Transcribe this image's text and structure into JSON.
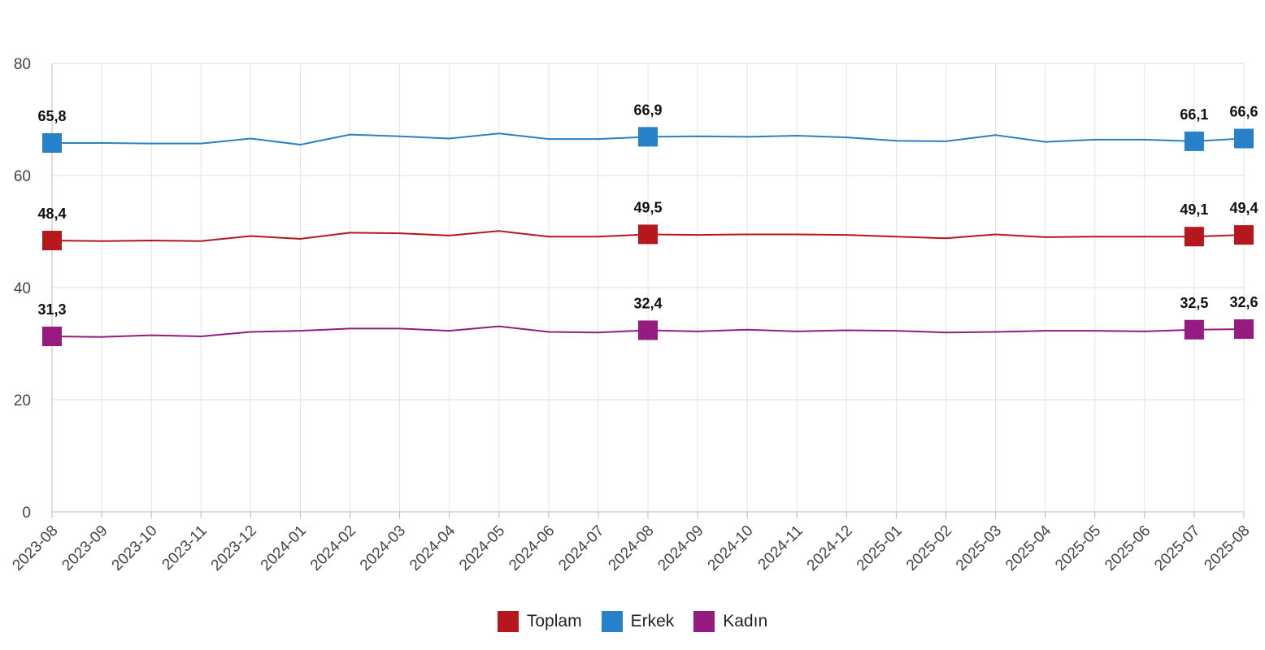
{
  "chart_data": {
    "type": "line",
    "x": [
      "2023-08",
      "2023-09",
      "2023-10",
      "2023-11",
      "2023-12",
      "2024-01",
      "2024-02",
      "2024-03",
      "2024-04",
      "2024-05",
      "2024-06",
      "2024-07",
      "2024-08",
      "2024-09",
      "2024-10",
      "2024-11",
      "2024-12",
      "2025-01",
      "2025-02",
      "2025-03",
      "2025-04",
      "2025-05",
      "2025-06",
      "2025-07",
      "2025-08"
    ],
    "ylim": [
      0,
      80
    ],
    "yticks": [
      0,
      20,
      40,
      60,
      80
    ],
    "grid": true,
    "legend_position": "bottom",
    "series": [
      {
        "name": "Toplam",
        "color": "#b5171c",
        "values": [
          48.4,
          48.3,
          48.4,
          48.3,
          49.2,
          48.7,
          49.8,
          49.7,
          49.3,
          50.1,
          49.1,
          49.1,
          49.5,
          49.4,
          49.5,
          49.5,
          49.4,
          49.1,
          48.8,
          49.5,
          49.0,
          49.1,
          49.1,
          49.1,
          49.4
        ],
        "labels": [
          {
            "index": 0,
            "text": "48,4"
          },
          {
            "index": 12,
            "text": "49,5"
          },
          {
            "index": 23,
            "text": "49,1"
          },
          {
            "index": 24,
            "text": "49,4"
          }
        ]
      },
      {
        "name": "Erkek",
        "color": "#2681c8",
        "values": [
          65.8,
          65.8,
          65.7,
          65.7,
          66.6,
          65.5,
          67.3,
          67.0,
          66.6,
          67.5,
          66.5,
          66.5,
          66.9,
          67.0,
          66.9,
          67.1,
          66.8,
          66.2,
          66.1,
          67.2,
          66.0,
          66.4,
          66.4,
          66.1,
          66.6
        ],
        "labels": [
          {
            "index": 0,
            "text": "65,8"
          },
          {
            "index": 12,
            "text": "66,9"
          },
          {
            "index": 23,
            "text": "66,1"
          },
          {
            "index": 24,
            "text": "66,6"
          }
        ]
      },
      {
        "name": "Kadın",
        "color": "#951b81",
        "values": [
          31.3,
          31.2,
          31.5,
          31.3,
          32.1,
          32.3,
          32.7,
          32.7,
          32.3,
          33.1,
          32.1,
          32.0,
          32.4,
          32.2,
          32.5,
          32.2,
          32.4,
          32.3,
          32.0,
          32.1,
          32.3,
          32.3,
          32.2,
          32.5,
          32.6
        ],
        "labels": [
          {
            "index": 0,
            "text": "31,3"
          },
          {
            "index": 12,
            "text": "32,4"
          },
          {
            "index": 23,
            "text": "32,5"
          },
          {
            "index": 24,
            "text": "32,6"
          }
        ]
      }
    ]
  }
}
